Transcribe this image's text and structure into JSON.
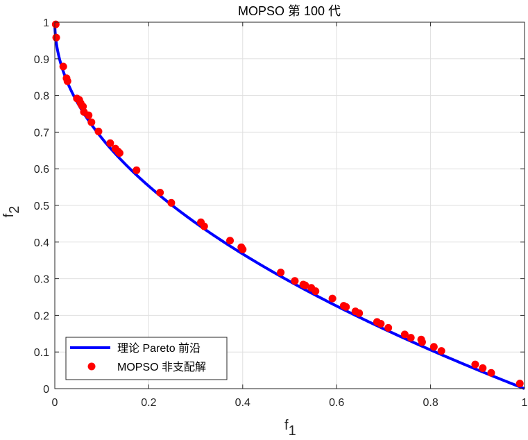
{
  "chart_data": {
    "type": "scatter",
    "title": "MOPSO 第 100 代",
    "xlabel_main": "f",
    "xlabel_sub": "1",
    "ylabel_main": "f",
    "ylabel_sub": "2",
    "xlim": [
      0,
      1
    ],
    "ylim": [
      0,
      1
    ],
    "xticks": [
      0,
      0.2,
      0.4,
      0.6,
      0.8,
      1
    ],
    "yticks": [
      0,
      0.1,
      0.2,
      0.3,
      0.4,
      0.5,
      0.6,
      0.7,
      0.8,
      0.9,
      1
    ],
    "xtick_labels": [
      "0",
      "0.2",
      "0.4",
      "0.6",
      "0.8",
      "1"
    ],
    "ytick_labels": [
      "0",
      "0.1",
      "0.2",
      "0.3",
      "0.4",
      "0.5",
      "0.6",
      "0.7",
      "0.8",
      "0.9",
      "1"
    ],
    "grid": true,
    "legend_position": "bottom-left",
    "series": [
      {
        "name": "理论 Pareto 前沿",
        "kind": "line",
        "color": "#0000ff",
        "function": "f2 = 1 - sqrt(f1)"
      },
      {
        "name": "MOPSO 非支配解",
        "kind": "scatter",
        "color": "#ff0000",
        "points": [
          [
            0.002,
            0.994
          ],
          [
            0.003,
            0.958
          ],
          [
            0.018,
            0.879
          ],
          [
            0.025,
            0.847
          ],
          [
            0.027,
            0.839
          ],
          [
            0.047,
            0.792
          ],
          [
            0.052,
            0.788
          ],
          [
            0.055,
            0.779
          ],
          [
            0.058,
            0.772
          ],
          [
            0.06,
            0.77
          ],
          [
            0.062,
            0.755
          ],
          [
            0.072,
            0.746
          ],
          [
            0.078,
            0.727
          ],
          [
            0.093,
            0.702
          ],
          [
            0.118,
            0.67
          ],
          [
            0.129,
            0.655
          ],
          [
            0.135,
            0.647
          ],
          [
            0.138,
            0.643
          ],
          [
            0.174,
            0.596
          ],
          [
            0.224,
            0.535
          ],
          [
            0.248,
            0.507
          ],
          [
            0.311,
            0.454
          ],
          [
            0.318,
            0.443
          ],
          [
            0.373,
            0.404
          ],
          [
            0.397,
            0.386
          ],
          [
            0.4,
            0.38
          ],
          [
            0.481,
            0.317
          ],
          [
            0.511,
            0.294
          ],
          [
            0.529,
            0.284
          ],
          [
            0.533,
            0.282
          ],
          [
            0.546,
            0.275
          ],
          [
            0.555,
            0.266
          ],
          [
            0.591,
            0.246
          ],
          [
            0.615,
            0.226
          ],
          [
            0.62,
            0.223
          ],
          [
            0.64,
            0.211
          ],
          [
            0.648,
            0.206
          ],
          [
            0.686,
            0.182
          ],
          [
            0.694,
            0.177
          ],
          [
            0.71,
            0.166
          ],
          [
            0.745,
            0.148
          ],
          [
            0.758,
            0.139
          ],
          [
            0.78,
            0.134
          ],
          [
            0.782,
            0.127
          ],
          [
            0.807,
            0.114
          ],
          [
            0.823,
            0.103
          ],
          [
            0.895,
            0.066
          ],
          [
            0.911,
            0.056
          ],
          [
            0.929,
            0.043
          ],
          [
            0.99,
            0.014
          ]
        ]
      }
    ]
  }
}
